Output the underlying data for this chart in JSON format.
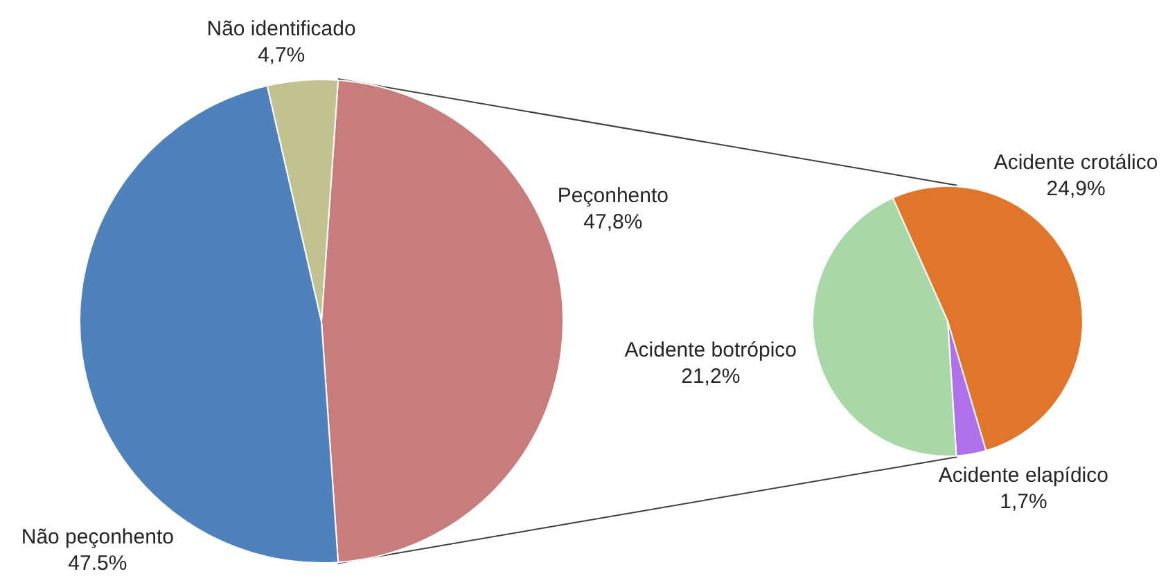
{
  "chart_data": [
    {
      "type": "pie",
      "categories": [
        "Peçonhento",
        "Não peçonhento",
        "Não identificado"
      ],
      "values": [
        47.8,
        47.5,
        4.7
      ],
      "colors": [
        "#c87c7c",
        "#4f81bd",
        "#c2c290"
      ],
      "value_labels": [
        "47,8%",
        "47.5%",
        "4,7%"
      ]
    },
    {
      "type": "pie",
      "categories": [
        "Acidente crotálico",
        "Acidente elapídico",
        "Acidente botrópico"
      ],
      "values": [
        24.9,
        1.7,
        21.2
      ],
      "colors": [
        "#e0762a",
        "#b070ec",
        "#a8d8a8"
      ],
      "value_labels": [
        "24,9%",
        "1,7%",
        "21,2%"
      ]
    }
  ]
}
